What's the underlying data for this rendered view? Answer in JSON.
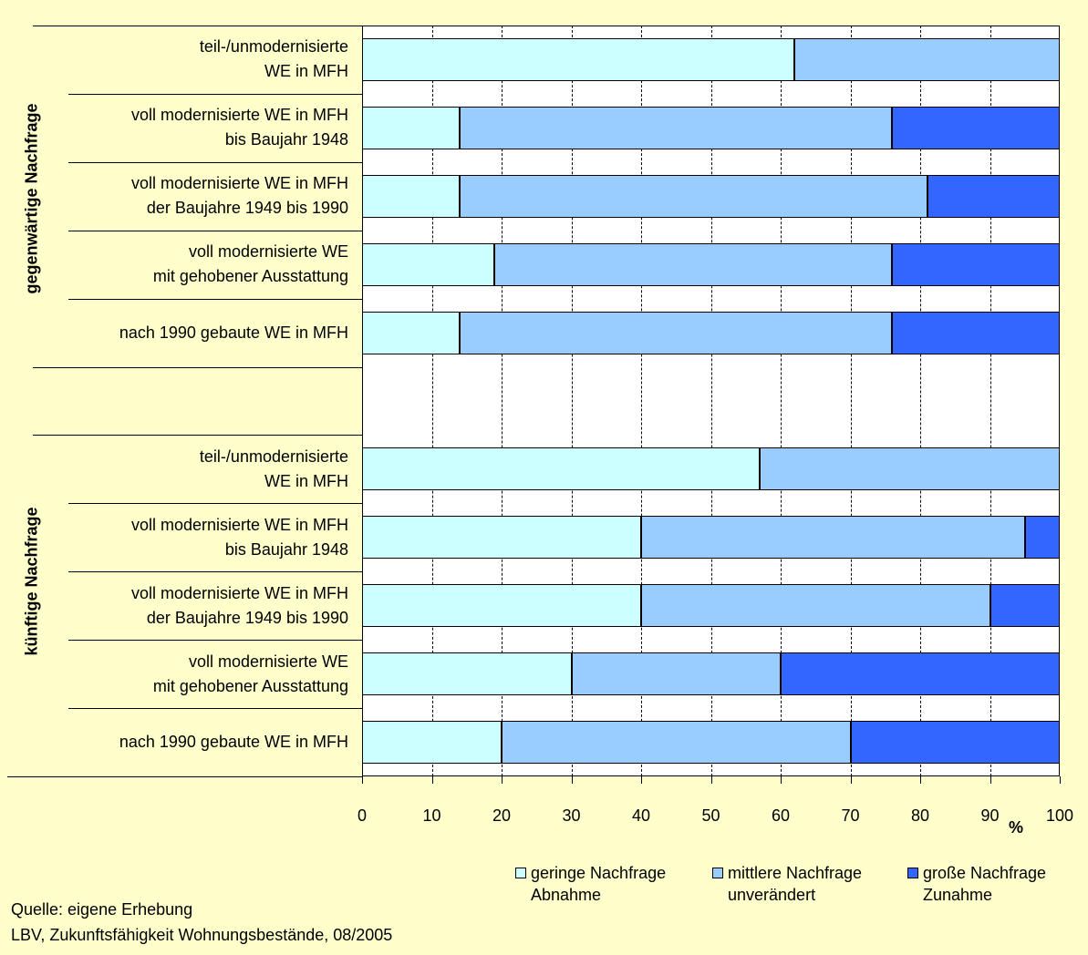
{
  "chart_data": {
    "type": "bar",
    "orientation": "horizontal",
    "stacked": true,
    "categories": [
      "teil-/unmodernisierte\nWE in MFH",
      "voll modernisierte WE in MFH\nbis Baujahr 1948",
      "voll modernisierte WE in MFH\nder Baujahre 1949 bis 1990",
      "voll modernisierte WE\nmit gehobener Ausstattung",
      "nach 1990 gebaute WE in MFH",
      null,
      "teil-/unmodernisierte\nWE in MFH",
      "voll modernisierte WE in MFH\nbis Baujahr 1948",
      "voll modernisierte WE in MFH\nder Baujahre 1949 bis 1990",
      "voll modernisierte WE\nmit gehobener Ausstattung",
      "nach 1990 gebaute WE in MFH"
    ],
    "groups": [
      "gegenwärtige Nachfrage",
      "künftige Nachfrage"
    ],
    "series": [
      {
        "name": "geringe Nachfrage\nAbnahme",
        "color": "#ccffff",
        "values": [
          62,
          14,
          14,
          19,
          14,
          null,
          57,
          40,
          40,
          30,
          20
        ]
      },
      {
        "name": "mittlere Nachfrage\nunverändert",
        "color": "#99ccff",
        "values": [
          38,
          62,
          67,
          57,
          62,
          null,
          43,
          55,
          50,
          30,
          50
        ]
      },
      {
        "name": "große Nachfrage\nZunahme",
        "color": "#3366ff",
        "values": [
          0,
          24,
          19,
          24,
          24,
          null,
          0,
          5,
          10,
          40,
          30
        ]
      }
    ],
    "xlim": [
      0,
      100
    ],
    "xticks": [
      0,
      10,
      20,
      30,
      40,
      50,
      60,
      70,
      80,
      90,
      100
    ],
    "x_unit": "%",
    "grid": true,
    "notes": [
      "Quelle: eigene Erhebung",
      "LBV, Zukunftsfähigkeit Wohnungsbestände, 08/2005"
    ]
  }
}
